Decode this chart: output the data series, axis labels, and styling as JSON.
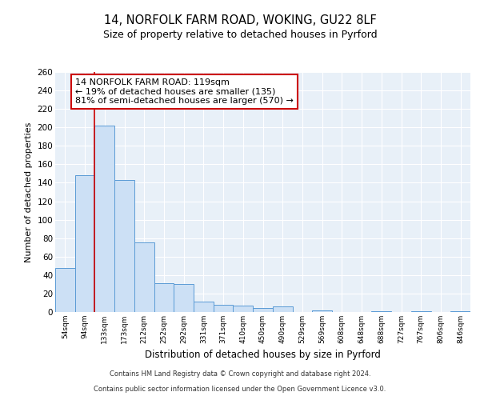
{
  "title_line1": "14, NORFOLK FARM ROAD, WOKING, GU22 8LF",
  "title_line2": "Size of property relative to detached houses in Pyrford",
  "xlabel": "Distribution of detached houses by size in Pyrford",
  "ylabel": "Number of detached properties",
  "bar_labels": [
    "54sqm",
    "94sqm",
    "133sqm",
    "173sqm",
    "212sqm",
    "252sqm",
    "292sqm",
    "331sqm",
    "371sqm",
    "410sqm",
    "450sqm",
    "490sqm",
    "529sqm",
    "569sqm",
    "608sqm",
    "648sqm",
    "688sqm",
    "727sqm",
    "767sqm",
    "806sqm",
    "846sqm"
  ],
  "bar_heights": [
    48,
    148,
    202,
    143,
    75,
    31,
    30,
    11,
    8,
    7,
    4,
    6,
    0,
    2,
    0,
    0,
    1,
    0,
    1,
    0,
    1
  ],
  "bar_color": "#cce0f5",
  "bar_edge_color": "#5b9bd5",
  "ylim": [
    0,
    260
  ],
  "yticks": [
    0,
    20,
    40,
    60,
    80,
    100,
    120,
    140,
    160,
    180,
    200,
    220,
    240,
    260
  ],
  "vline_x": 1.5,
  "vline_color": "#cc0000",
  "annotation_text": "14 NORFOLK FARM ROAD: 119sqm\n← 19% of detached houses are smaller (135)\n81% of semi-detached houses are larger (570) →",
  "annotation_box_color": "#ffffff",
  "annotation_box_edgecolor": "#cc0000",
  "footer_line1": "Contains HM Land Registry data © Crown copyright and database right 2024.",
  "footer_line2": "Contains public sector information licensed under the Open Government Licence v3.0.",
  "background_color": "#e8f0f8",
  "grid_color": "#ffffff",
  "fig_bg_color": "#ffffff"
}
